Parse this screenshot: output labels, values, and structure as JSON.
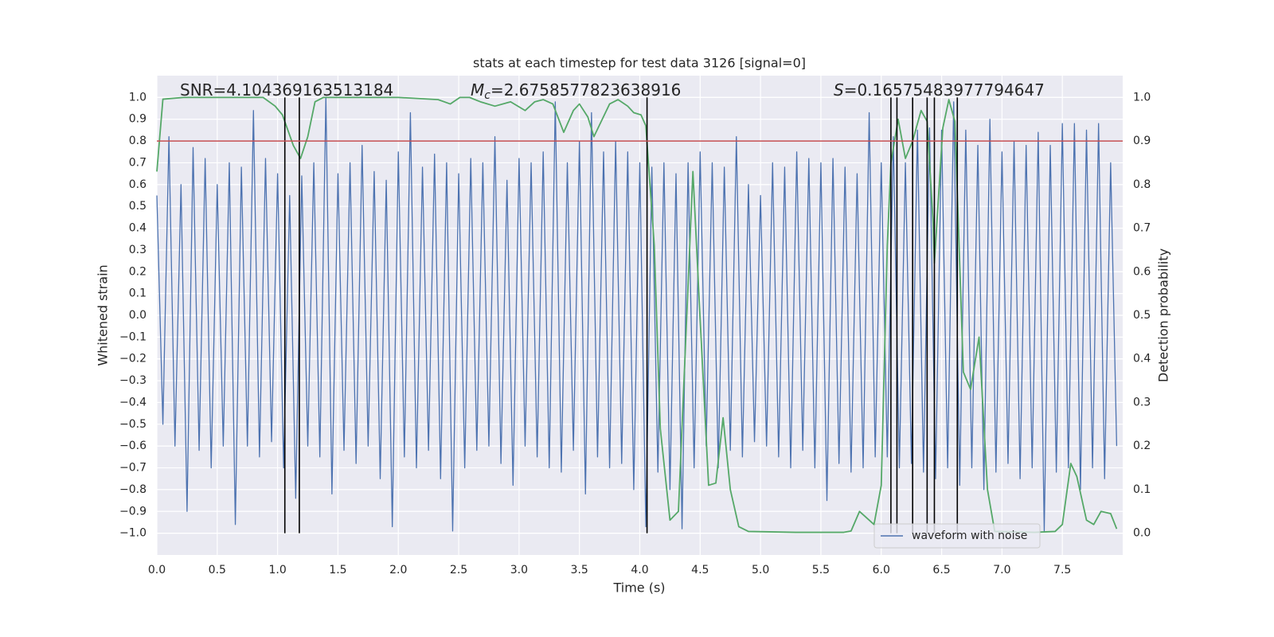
{
  "chart_data": {
    "type": "line",
    "title": "stats at each timestep for test data 3126 [signal=0]",
    "x_label": "Time (s)",
    "y_label": "Whitened strain",
    "y2_label": "Detection probability",
    "xlim": [
      0,
      8
    ],
    "ylim": [
      -1.1,
      1.1
    ],
    "y2lim": [
      -0.05,
      1.05
    ],
    "xticks": [
      {
        "value": 0,
        "label": "0.0"
      },
      0.5,
      {
        "value": 1,
        "label": "1.0"
      },
      1.5,
      {
        "value": 2,
        "label": "2.0"
      },
      2.5,
      {
        "value": 3,
        "label": "3.0"
      },
      3.5,
      {
        "value": 4,
        "label": "4.0"
      },
      4.5,
      {
        "value": 5,
        "label": "5.0"
      },
      5.5,
      {
        "value": 6,
        "label": "6.0"
      },
      6.5,
      {
        "value": 7,
        "label": "7.0"
      },
      7.5
    ],
    "yticks": [
      {
        "value": -1,
        "label": "−1.0"
      },
      {
        "value": -0.9,
        "label": "−0.9"
      },
      {
        "value": -0.8,
        "label": "−0.8"
      },
      {
        "value": -0.7,
        "label": "−0.7"
      },
      {
        "value": -0.6,
        "label": "−0.6"
      },
      {
        "value": -0.5,
        "label": "−0.5"
      },
      {
        "value": -0.4,
        "label": "−0.4"
      },
      {
        "value": -0.3,
        "label": "−0.3"
      },
      {
        "value": -0.2,
        "label": "−0.2"
      },
      {
        "value": -0.1,
        "label": "−0.1"
      },
      {
        "value": 0,
        "label": "0.0"
      },
      0.1,
      0.2,
      0.3,
      0.4,
      0.5,
      0.6,
      0.7,
      0.8,
      0.9,
      {
        "value": 1,
        "label": "1.0"
      }
    ],
    "y2ticks": [
      {
        "value": 0,
        "label": "0.0"
      },
      0.1,
      0.2,
      0.3,
      0.4,
      0.5,
      0.6,
      0.7,
      0.8,
      0.9,
      {
        "value": 1,
        "label": "1.0"
      }
    ],
    "grid": true,
    "legend": "lower right",
    "series": [
      {
        "name": "waveform with noise",
        "color": "#4c72b0",
        "x": [
          0,
          0.05,
          0.1,
          0.15,
          0.2,
          0.25,
          0.3,
          0.35,
          0.4,
          0.45,
          0.5,
          0.55,
          0.6,
          0.65,
          0.7,
          0.75,
          0.8,
          0.85,
          0.9,
          0.95,
          1,
          1.05,
          1.1,
          1.15,
          1.2,
          1.25,
          1.3,
          1.35,
          1.4,
          1.45,
          1.5,
          1.55,
          1.6,
          1.65,
          1.7,
          1.75,
          1.8,
          1.85,
          1.9,
          1.95,
          2,
          2.05,
          2.1,
          2.15,
          2.2,
          2.25,
          2.3,
          2.35,
          2.4,
          2.45,
          2.5,
          2.55,
          2.6,
          2.65,
          2.7,
          2.75,
          2.8,
          2.85,
          2.9,
          2.95,
          3,
          3.05,
          3.1,
          3.15,
          3.2,
          3.25,
          3.3,
          3.35,
          3.4,
          3.45,
          3.5,
          3.55,
          3.6,
          3.65,
          3.7,
          3.75,
          3.8,
          3.85,
          3.9,
          3.95,
          4,
          4.05,
          4.1,
          4.15,
          4.2,
          4.25,
          4.3,
          4.35,
          4.4,
          4.45,
          4.5,
          4.55,
          4.6,
          4.65,
          4.7,
          4.75,
          4.8,
          4.85,
          4.9,
          4.95,
          5,
          5.05,
          5.1,
          5.15,
          5.2,
          5.25,
          5.3,
          5.35,
          5.4,
          5.45,
          5.5,
          5.55,
          5.6,
          5.65,
          5.7,
          5.75,
          5.8,
          5.85,
          5.9,
          5.95,
          6,
          6.05,
          6.1,
          6.15,
          6.2,
          6.25,
          6.3,
          6.35,
          6.4,
          6.45,
          6.5,
          6.55,
          6.6,
          6.65,
          6.7,
          6.75,
          6.8,
          6.85,
          6.9,
          6.95,
          7,
          7.05,
          7.1,
          7.15,
          7.2,
          7.25,
          7.3,
          7.35,
          7.4,
          7.45,
          7.5,
          7.55,
          7.6,
          7.65,
          7.7,
          7.75,
          7.8,
          7.85,
          7.9,
          7.95
        ],
        "values": [
          0.55,
          -0.5,
          0.82,
          -0.6,
          0.6,
          -0.9,
          0.77,
          -0.62,
          0.72,
          -0.7,
          0.6,
          -0.6,
          0.7,
          -0.96,
          0.68,
          -0.6,
          0.94,
          -0.65,
          0.72,
          -0.58,
          0.65,
          -0.7,
          0.55,
          -0.84,
          0.64,
          -0.6,
          0.7,
          -0.65,
          1.0,
          -0.82,
          0.65,
          -0.62,
          0.7,
          -0.68,
          0.78,
          -0.6,
          0.66,
          -0.75,
          0.62,
          -0.97,
          0.75,
          -0.65,
          0.93,
          -0.7,
          0.68,
          -0.62,
          0.74,
          -0.75,
          0.7,
          -0.99,
          0.65,
          -0.7,
          0.72,
          -0.62,
          0.7,
          -0.6,
          0.82,
          -0.68,
          0.62,
          -0.78,
          0.72,
          -0.6,
          0.7,
          -0.65,
          0.75,
          -0.7,
          0.98,
          -0.72,
          0.7,
          -0.62,
          0.8,
          -0.82,
          0.93,
          -0.65,
          0.75,
          -0.7,
          0.8,
          -0.68,
          0.75,
          -0.8,
          0.7,
          -0.97,
          0.68,
          -0.72,
          0.7,
          -0.8,
          0.65,
          -0.98,
          0.7,
          -0.7,
          0.75,
          -0.6,
          0.7,
          -0.7,
          0.68,
          -0.62,
          0.82,
          -0.65,
          0.6,
          -0.58,
          0.55,
          -0.6,
          0.7,
          -0.65,
          0.68,
          -0.7,
          0.75,
          -0.62,
          0.72,
          -0.7,
          0.7,
          -0.85,
          0.72,
          -0.68,
          0.68,
          -0.72,
          0.65,
          -0.7,
          0.93,
          -0.65,
          0.7,
          -0.65,
          0.82,
          -0.7,
          0.7,
          -0.68,
          0.85,
          -0.72,
          0.86,
          -0.75,
          0.85,
          -0.7,
          0.98,
          -0.78,
          0.85,
          -0.7,
          0.78,
          -0.8,
          0.9,
          -0.72,
          0.75,
          -0.68,
          0.8,
          -0.75,
          0.78,
          -0.7,
          0.84,
          -0.99,
          0.78,
          -0.72,
          0.88,
          -0.7,
          0.88,
          -0.8,
          0.85,
          -0.7,
          0.88,
          -0.75,
          0.7,
          -0.6
        ]
      },
      {
        "color": "#55a868",
        "axis": "y2",
        "x": [
          0,
          0.05,
          0.22,
          0.88,
          0.98,
          1.04,
          1.13,
          1.19,
          1.25,
          1.31,
          1.38,
          2.0,
          2.33,
          2.43,
          2.51,
          2.59,
          2.68,
          2.8,
          2.93,
          3.05,
          3.13,
          3.2,
          3.28,
          3.37,
          3.45,
          3.5,
          3.57,
          3.62,
          3.75,
          3.82,
          3.9,
          3.95,
          4.01,
          4.05,
          4.12,
          4.17,
          4.25,
          4.32,
          4.44,
          4.5,
          4.57,
          4.63,
          4.69,
          4.75,
          4.82,
          4.9,
          5.29,
          5.69,
          5.75,
          5.82,
          5.94,
          6.0,
          6.05,
          6.08,
          6.14,
          6.2,
          6.26,
          6.33,
          6.38,
          6.43,
          6.44,
          6.51,
          6.56,
          6.61,
          6.68,
          6.74,
          6.81,
          6.88,
          6.94,
          7.27,
          7.44,
          7.5,
          7.57,
          7.62,
          7.7,
          7.76,
          7.82,
          7.9,
          7.95
        ],
        "values": [
          0.83,
          0.996,
          1.0,
          1.0,
          0.98,
          0.96,
          0.89,
          0.86,
          0.91,
          0.99,
          1.0,
          1.0,
          0.995,
          0.985,
          1.0,
          1.0,
          0.99,
          0.98,
          0.99,
          0.97,
          0.99,
          0.995,
          0.985,
          0.92,
          0.97,
          0.985,
          0.955,
          0.91,
          0.985,
          0.995,
          0.98,
          0.965,
          0.96,
          0.935,
          0.66,
          0.24,
          0.03,
          0.05,
          0.83,
          0.49,
          0.11,
          0.115,
          0.265,
          0.1,
          0.015,
          0.004,
          0.002,
          0.002,
          0.005,
          0.05,
          0.02,
          0.11,
          0.66,
          0.85,
          0.95,
          0.86,
          0.9,
          0.97,
          0.945,
          0.71,
          0.62,
          0.93,
          0.995,
          0.945,
          0.37,
          0.33,
          0.45,
          0.1,
          0.004,
          0.002,
          0.004,
          0.02,
          0.16,
          0.13,
          0.03,
          0.02,
          0.05,
          0.045,
          0.01
        ]
      }
    ],
    "vlines": {
      "x": [
        1.06,
        1.18,
        4.06,
        6.08,
        6.13,
        6.26,
        6.38,
        6.44,
        6.63
      ],
      "color": "#000000"
    },
    "threshold": {
      "value": 0.9,
      "axis": "y2",
      "color": "#c44e52"
    },
    "annotations": [
      {
        "text": "SNR=4.104369163513184"
      },
      {
        "symbol": "M",
        "subscript": "c",
        "text": "=2.6758577823638916"
      },
      {
        "symbol": "S",
        "text": "=0.16575483977794647"
      }
    ]
  }
}
